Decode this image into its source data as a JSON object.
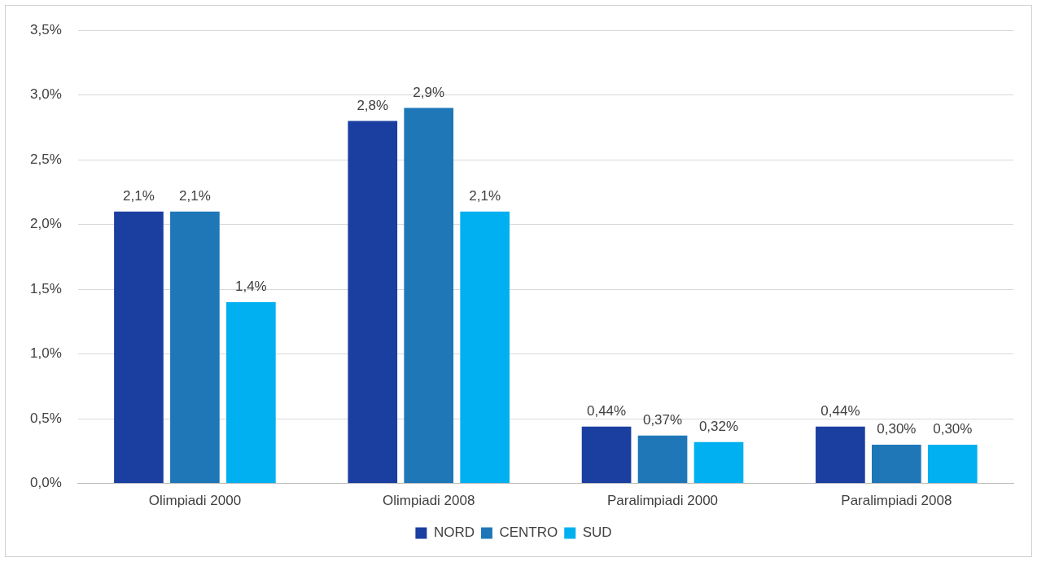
{
  "chart_data": {
    "type": "bar",
    "categories": [
      "Olimpiadi 2000",
      "Olimpiadi 2008",
      "Paralimpiadi 2000",
      "Paralimpiadi 2008"
    ],
    "series": [
      {
        "name": "NORD",
        "color": "#1a3fa0",
        "values": [
          2.1,
          2.8,
          0.44,
          0.44
        ],
        "value_labels": [
          "2,1%",
          "2,8%",
          "0,44%",
          "0,44%"
        ]
      },
      {
        "name": "CENTRO",
        "color": "#1f77b8",
        "values": [
          2.1,
          2.9,
          0.37,
          0.3
        ],
        "value_labels": [
          "2,1%",
          "2,9%",
          "0,37%",
          "0,30%"
        ]
      },
      {
        "name": "SUD",
        "color": "#00b0f0",
        "values": [
          1.4,
          2.1,
          0.32,
          0.3
        ],
        "value_labels": [
          "1,4%",
          "2,1%",
          "0,32%",
          "0,30%"
        ]
      }
    ],
    "ylim": [
      0,
      3.5
    ],
    "yticks": [
      {
        "value": 0,
        "label": "0,0%"
      },
      {
        "value": 0.5,
        "label": "0,5%"
      },
      {
        "value": 1,
        "label": "1,0%"
      },
      {
        "value": 1.5,
        "label": "1,5%"
      },
      {
        "value": 2,
        "label": "2,0%"
      },
      {
        "value": 2.5,
        "label": "2,5%"
      },
      {
        "value": 3,
        "label": "3,0%"
      },
      {
        "value": 3.5,
        "label": "3,5%"
      }
    ],
    "grid": "y",
    "legend": "bottom"
  }
}
